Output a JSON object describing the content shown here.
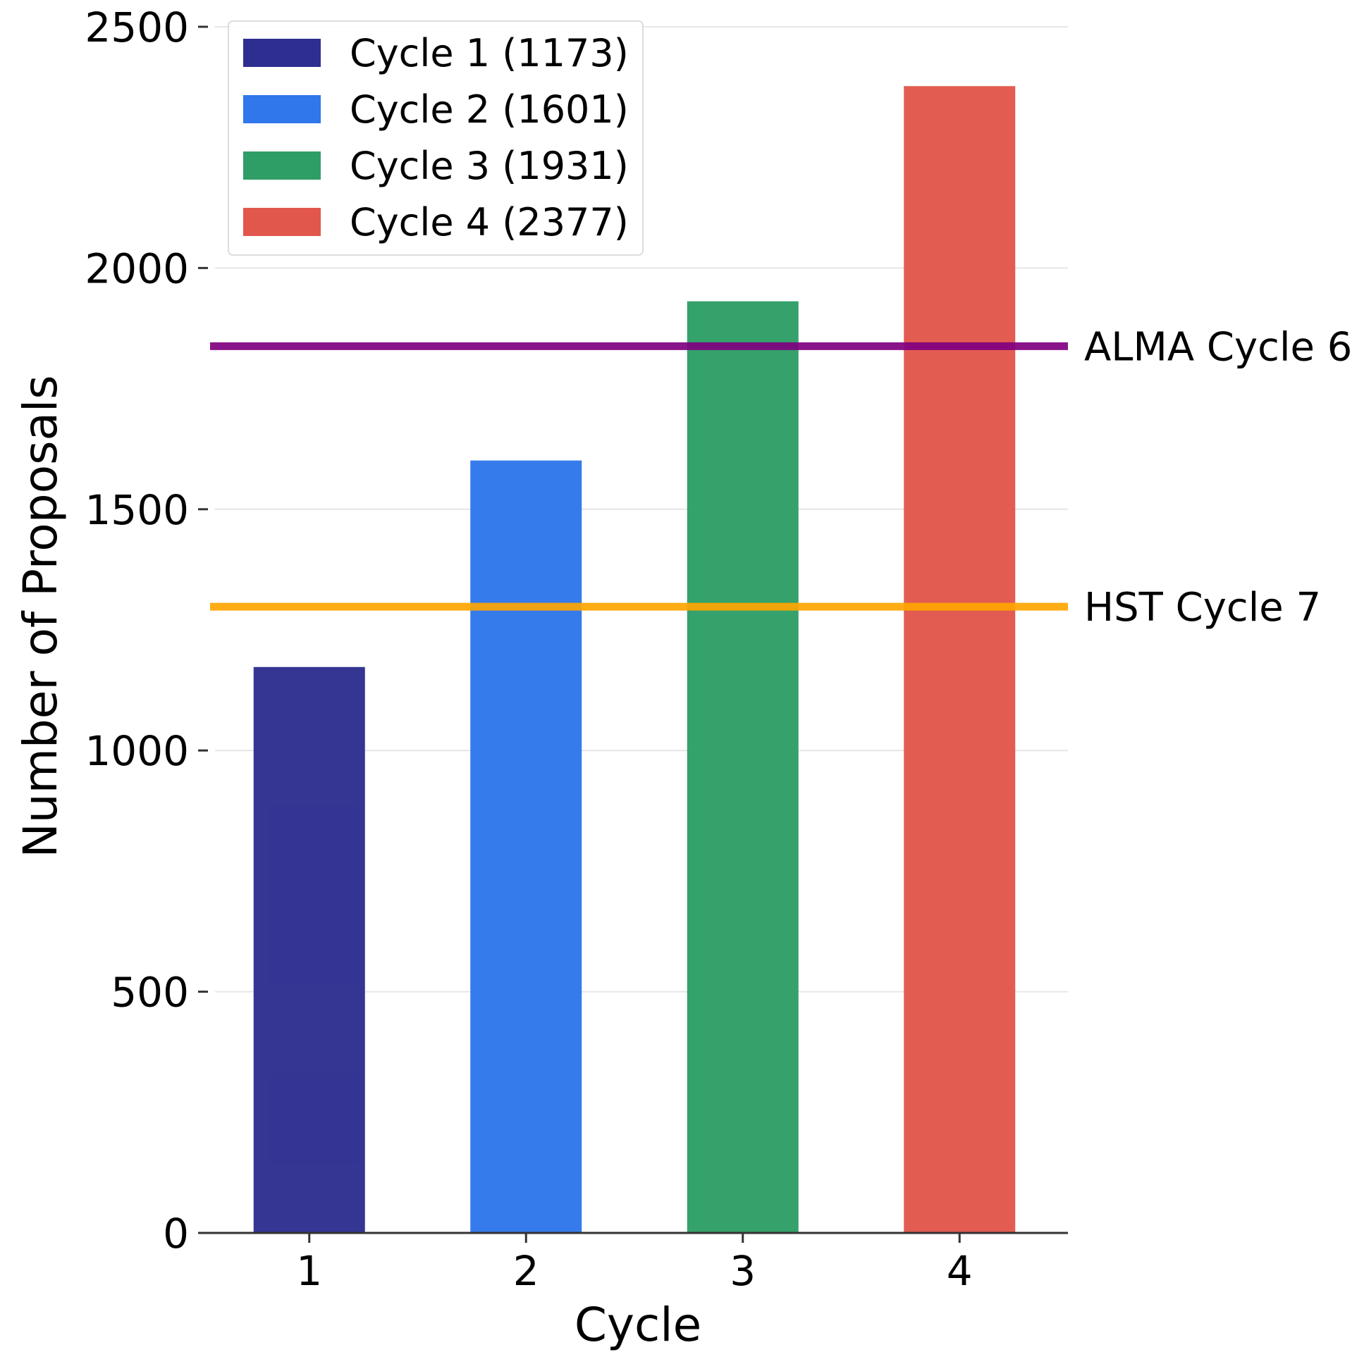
{
  "chart_data": {
    "type": "bar",
    "categories": [
      "1",
      "2",
      "3",
      "4"
    ],
    "values": [
      1173,
      1601,
      1931,
      2377
    ],
    "colors": [
      "#2e2e91",
      "#2f77ea",
      "#2e9e66",
      "#e2574c"
    ],
    "xlabel": "Cycle",
    "ylabel": "Number of Proposals",
    "ylim": [
      0,
      2500
    ],
    "yticks": [
      0,
      500,
      1000,
      1500,
      2000,
      2500
    ],
    "grid": "horizontal",
    "legend": {
      "placement": "top-left",
      "entries": [
        {
          "label": "Cycle 1 (1173)",
          "color": "#2e2e91"
        },
        {
          "label": "Cycle 2 (1601)",
          "color": "#2f77ea"
        },
        {
          "label": "Cycle 3 (1931)",
          "color": "#2e9e66"
        },
        {
          "label": "Cycle 4 (2377)",
          "color": "#e2574c"
        }
      ]
    },
    "reference_lines": [
      {
        "label": "ALMA Cycle 6",
        "value": 1838,
        "color": "#800080"
      },
      {
        "label": "HST Cycle 7",
        "value": 1298,
        "color": "#ffa500"
      }
    ]
  }
}
